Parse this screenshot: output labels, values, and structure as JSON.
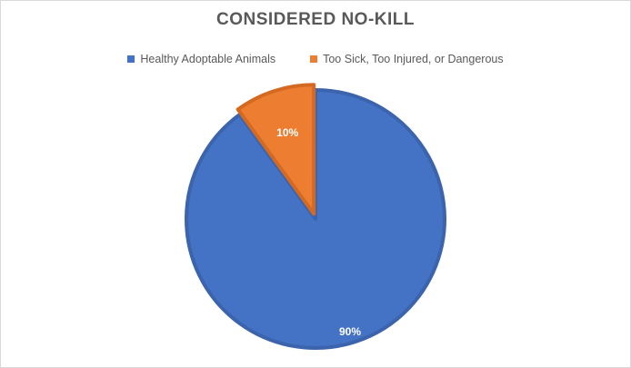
{
  "chart_data": {
    "type": "pie",
    "title": "CONSIDERED NO-KILL",
    "legend_position": "top",
    "series": [
      {
        "values": [
          90,
          10
        ]
      }
    ],
    "categories": [
      "Healthy Adoptable Animals",
      "Too Sick, Too Injured, or Dangerous"
    ],
    "values": [
      90,
      10
    ],
    "data_labels": [
      "90%",
      "10%"
    ],
    "colors": [
      "#4472C4",
      "#ED7D31"
    ]
  }
}
